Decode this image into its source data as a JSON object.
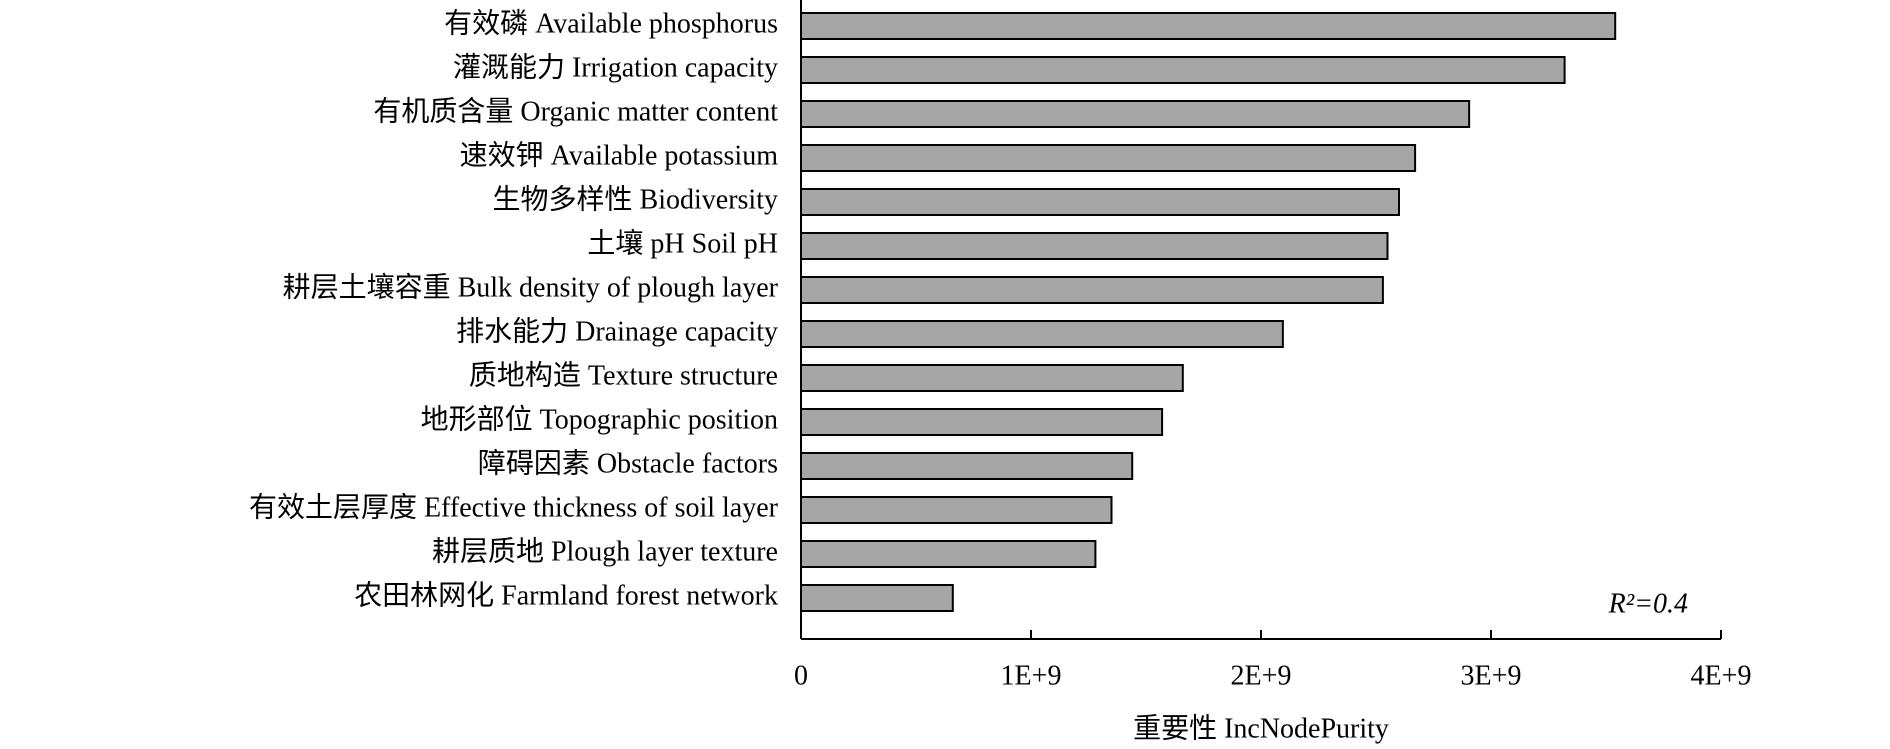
{
  "chart_data": {
    "type": "bar",
    "orientation": "horizontal",
    "categories": [
      "有效磷 Available phosphorus",
      "灌溉能力 Irrigation capacity",
      "有机质含量 Organic matter content",
      "速效钾 Available potassium",
      "生物多样性 Biodiversity",
      "土壤 pH Soil pH",
      "耕层土壤容重 Bulk density of plough layer",
      "排水能力 Drainage capacity",
      "质地构造 Texture structure",
      "地形部位 Topographic position",
      "障碍因素 Obstacle factors",
      "有效土层厚度 Effective thickness of soil layer",
      "耕层质地 Plough layer texture",
      "农田林网化 Farmland forest network"
    ],
    "values": [
      3540000000,
      3320000000,
      2905000000,
      2670000000,
      2600000000,
      2550000000,
      2530000000,
      2095000000,
      1660000000,
      1570000000,
      1440000000,
      1350000000,
      1280000000,
      660000000
    ],
    "color": "#a6a6a6",
    "xlim": [
      0,
      4000000000
    ],
    "xticks": [
      0,
      {
        "value": 1000000000,
        "label": "1E+9"
      },
      {
        "value": 2000000000,
        "label": "2E+9"
      },
      {
        "value": 3000000000,
        "label": "3E+9"
      },
      {
        "value": 4000000000,
        "label": "4E+9"
      }
    ],
    "xlabel": "重要性 IncNodePurity",
    "annotation": "R²=0.4"
  }
}
